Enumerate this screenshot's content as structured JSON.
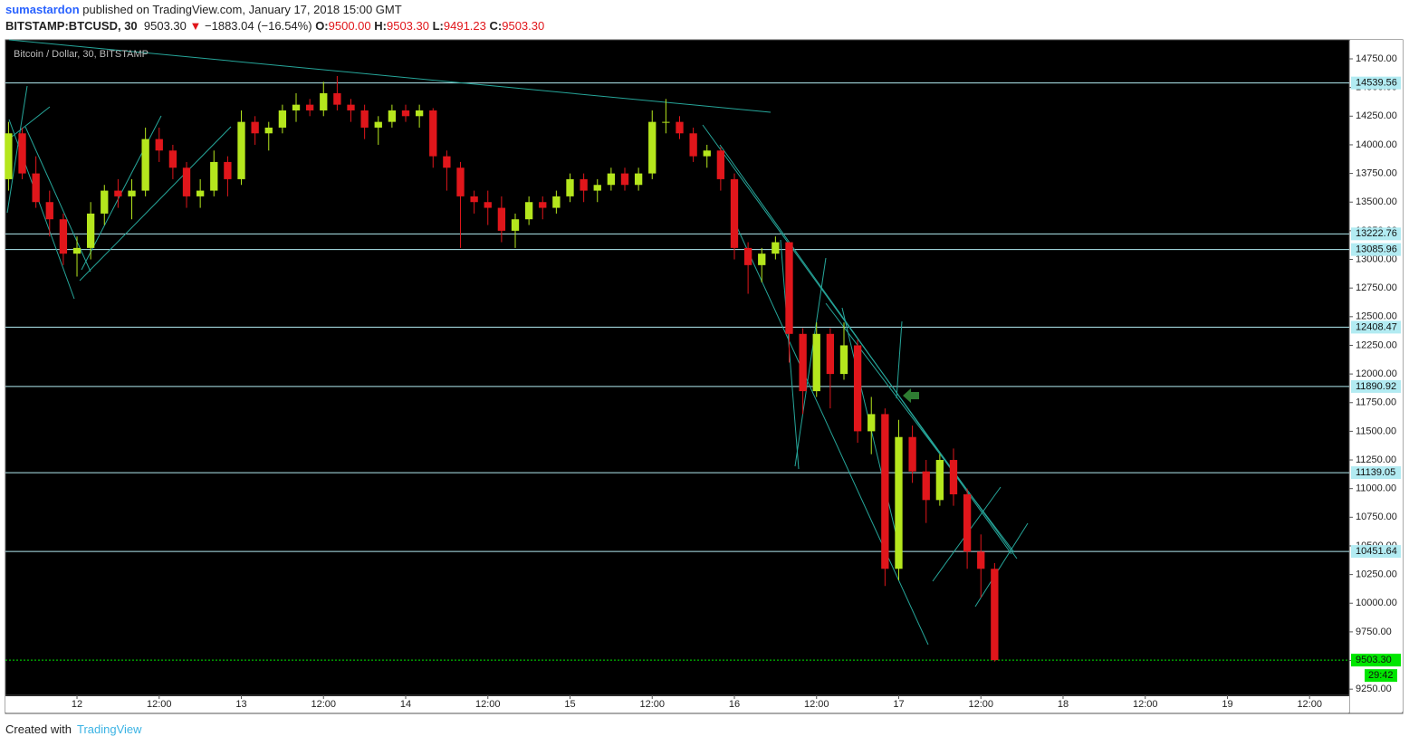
{
  "header": {
    "user": "sumastardon",
    "published": "published on TradingView.com, January 17, 2018 15:00 GMT",
    "symbol": "BITSTAMP:BTCUSD, 30",
    "last": "9503.30",
    "change": "−1883.04 (−16.54%)",
    "o_label": "O:",
    "o": "9500.00",
    "h_label": "H:",
    "h": "9503.30",
    "l_label": "L:",
    "l": "9491.23",
    "c_label": "C:",
    "c": "9503.30"
  },
  "footer": {
    "created": "Created with",
    "brand": "TradingView"
  },
  "chart_data": {
    "type": "candlestick",
    "title": "Bitcoin / Dollar, 30, BITSTAMP",
    "up_color": "#b5e61d",
    "down_color": "#e0161b",
    "level_color": "#b2ebf2",
    "xlim": [
      -10.45,
      185.79
    ],
    "ylim": [
      9054,
      14916
    ],
    "xticks": [
      {
        "value": 0,
        "label": "12"
      },
      {
        "value": 12,
        "label": "12:00"
      },
      {
        "value": 24,
        "label": "13"
      },
      {
        "value": 36,
        "label": "12:00"
      },
      {
        "value": 48,
        "label": "14"
      },
      {
        "value": 60,
        "label": "12:00"
      },
      {
        "value": 72,
        "label": "15"
      },
      {
        "value": 84,
        "label": "12:00"
      },
      {
        "value": 96,
        "label": "16"
      },
      {
        "value": 108,
        "label": "12:00"
      },
      {
        "value": 120,
        "label": "17"
      },
      {
        "value": 132,
        "label": "12:00"
      },
      {
        "value": 144,
        "label": "18"
      },
      {
        "value": 156,
        "label": "12:00"
      },
      {
        "value": 168,
        "label": "19"
      },
      {
        "value": 180,
        "label": "12:00"
      }
    ],
    "yticks": [
      {
        "value": 9250,
        "label": "9250.00"
      },
      {
        "value": 9500,
        "label": "9500.00"
      },
      {
        "value": 9750,
        "label": "9750.00"
      },
      {
        "value": 10000,
        "label": "10000.00"
      },
      {
        "value": 10250,
        "label": "10250.00"
      },
      {
        "value": 10500,
        "label": "10500.00"
      },
      {
        "value": 10750,
        "label": "10750.00"
      },
      {
        "value": 11000,
        "label": "11000.00"
      },
      {
        "value": 11250,
        "label": "11250.00"
      },
      {
        "value": 11500,
        "label": "11500.00"
      },
      {
        "value": 11750,
        "label": "11750.00"
      },
      {
        "value": 12000,
        "label": "12000.00"
      },
      {
        "value": 12250,
        "label": "12250.00"
      },
      {
        "value": 12500,
        "label": "12500.00"
      },
      {
        "value": 12750,
        "label": "12750.00"
      },
      {
        "value": 13000,
        "label": "13000.00"
      },
      {
        "value": 13250,
        "label": "13250.00"
      },
      {
        "value": 13500,
        "label": "13500.00"
      },
      {
        "value": 13750,
        "label": "13750.00"
      },
      {
        "value": 14000,
        "label": "14000.00"
      },
      {
        "value": 14250,
        "label": "14250.00"
      },
      {
        "value": 14500,
        "label": "14500.00"
      },
      {
        "value": 14750,
        "label": "14750.00"
      }
    ],
    "levels": [
      14539.56,
      13222.76,
      13085.96,
      12408.47,
      11890.92,
      11139.05,
      10451.64
    ],
    "last_price": {
      "value": 9503.3,
      "label": "9503.30"
    },
    "last_color": "#00e600",
    "countdown": "29:42",
    "x": [
      -10,
      -8,
      -6,
      -4,
      -2,
      0,
      2,
      4,
      6,
      8,
      10,
      12,
      14,
      16,
      18,
      20,
      22,
      24,
      26,
      28,
      30,
      32,
      34,
      36,
      38,
      40,
      42,
      44,
      46,
      48,
      50,
      52,
      54,
      56,
      58,
      60,
      62,
      64,
      66,
      68,
      70,
      72,
      74,
      76,
      78,
      80,
      82,
      84,
      86,
      88,
      90,
      92,
      94,
      96,
      98,
      100,
      102,
      104,
      106,
      108,
      110,
      112,
      114,
      116,
      118,
      120,
      122,
      124,
      126,
      128,
      130,
      132,
      134
    ],
    "open": [
      13700,
      14100,
      13750,
      13500,
      13350,
      13050,
      13100,
      13400,
      13600,
      13550,
      13600,
      14050,
      13950,
      13800,
      13550,
      13600,
      13850,
      13700,
      14200,
      14100,
      14150,
      14300,
      14350,
      14300,
      14450,
      14350,
      14300,
      14150,
      14200,
      14300,
      14250,
      14300,
      13900,
      13800,
      13550,
      13500,
      13450,
      13250,
      13350,
      13500,
      13450,
      13550,
      13700,
      13600,
      13650,
      13750,
      13650,
      13750,
      14200,
      14200,
      14100,
      13900,
      13950,
      13700,
      13100,
      12950,
      13050,
      13150,
      12350,
      11850,
      12350,
      12000,
      12250,
      11500,
      11650,
      10300,
      11450,
      11150,
      10900,
      11250,
      10950,
      10450,
      10300
    ],
    "high": [
      14200,
      14150,
      13900,
      13600,
      13400,
      13200,
      13500,
      13650,
      13700,
      13700,
      14150,
      14150,
      14000,
      13850,
      13700,
      13950,
      13900,
      14300,
      14250,
      14200,
      14350,
      14450,
      14400,
      14550,
      14600,
      14400,
      14350,
      14250,
      14350,
      14350,
      14350,
      14320,
      13950,
      13850,
      13600,
      13600,
      13550,
      13400,
      13550,
      13550,
      13600,
      13750,
      13750,
      13700,
      13800,
      13800,
      13800,
      14300,
      14400,
      14250,
      14150,
      14000,
      13980,
      13750,
      13150,
      13100,
      13200,
      13150,
      12400,
      12450,
      12400,
      12450,
      12300,
      11800,
      11700,
      11600,
      11550,
      11250,
      11300,
      11350,
      11000,
      10600,
      10350
    ],
    "low": [
      13600,
      13700,
      13450,
      13200,
      12950,
      12850,
      13000,
      13300,
      13450,
      13350,
      13550,
      13850,
      13700,
      13450,
      13450,
      13550,
      13550,
      13650,
      14000,
      13950,
      14100,
      14200,
      14250,
      14250,
      14300,
      14200,
      14050,
      14000,
      14150,
      14200,
      14150,
      13800,
      13600,
      13100,
      13400,
      13300,
      13150,
      13100,
      13300,
      13350,
      13400,
      13500,
      13500,
      13500,
      13600,
      13600,
      13600,
      13700,
      14100,
      14050,
      13850,
      13800,
      13600,
      13000,
      12700,
      12800,
      13000,
      12100,
      11650,
      11800,
      11700,
      11950,
      11400,
      11300,
      10150,
      10200,
      11050,
      10700,
      10850,
      10850,
      10300,
      10050,
      9491.23
    ],
    "close": [
      14100,
      13750,
      13500,
      13350,
      13050,
      13100,
      13400,
      13600,
      13550,
      13600,
      14050,
      13950,
      13800,
      13550,
      13600,
      13850,
      13700,
      14200,
      14100,
      14150,
      14300,
      14350,
      14300,
      14450,
      14350,
      14300,
      14150,
      14200,
      14300,
      14250,
      14300,
      13900,
      13800,
      13550,
      13500,
      13450,
      13250,
      13350,
      13500,
      13450,
      13550,
      13700,
      13600,
      13650,
      13750,
      13650,
      13750,
      14200,
      14200,
      14100,
      13900,
      13950,
      13700,
      13100,
      12950,
      13050,
      13150,
      12350,
      11850,
      12350,
      12000,
      12250,
      11500,
      11650,
      10300,
      11450,
      11150,
      10900,
      11250,
      10950,
      10450,
      10300,
      9503.3
    ]
  }
}
